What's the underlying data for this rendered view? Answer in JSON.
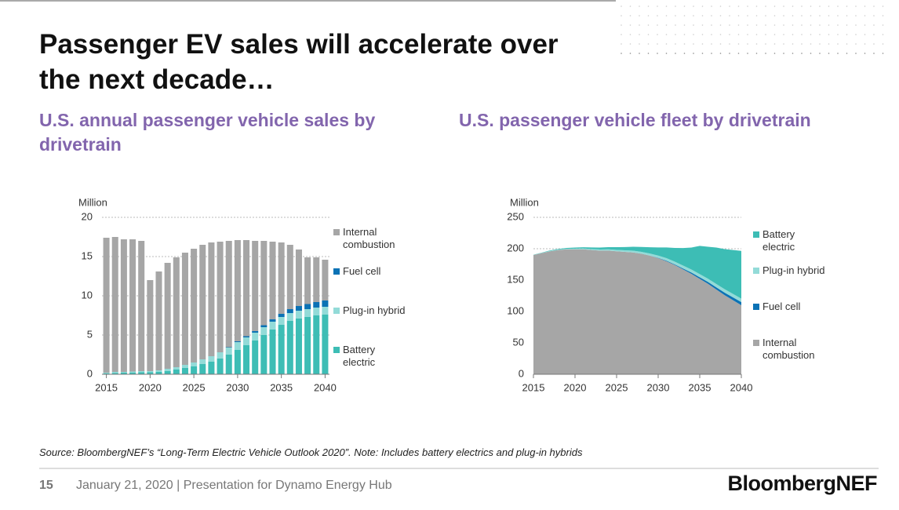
{
  "header": {
    "title": "Passenger EV sales will accelerate over the next decade…"
  },
  "chart_data": [
    {
      "type": "bar",
      "stacked": true,
      "title": "U.S. annual passenger vehicle sales by drivetrain",
      "y_label": "Million",
      "x": [
        2015,
        2016,
        2017,
        2018,
        2019,
        2020,
        2021,
        2022,
        2023,
        2024,
        2025,
        2026,
        2027,
        2028,
        2029,
        2030,
        2031,
        2032,
        2033,
        2034,
        2035,
        2036,
        2037,
        2038,
        2039,
        2040
      ],
      "xlim": [
        2014.5,
        2040.5
      ],
      "xticks": [
        2015,
        2020,
        2025,
        2030,
        2035,
        2040
      ],
      "ylim": [
        0,
        20
      ],
      "yticks": [
        0,
        5,
        10,
        15,
        20
      ],
      "grid": true,
      "series": [
        {
          "name": "Battery electric",
          "color": "#3dbdb5",
          "values": [
            0.1,
            0.15,
            0.2,
            0.2,
            0.25,
            0.25,
            0.3,
            0.4,
            0.6,
            0.8,
            1.0,
            1.3,
            1.6,
            2.0,
            2.5,
            3.1,
            3.7,
            4.3,
            5.0,
            5.7,
            6.3,
            6.8,
            7.1,
            7.3,
            7.5,
            7.6
          ]
        },
        {
          "name": "Plug-in hybrid",
          "color": "#93dbd8",
          "values": [
            0.1,
            0.15,
            0.1,
            0.15,
            0.15,
            0.15,
            0.2,
            0.3,
            0.3,
            0.4,
            0.5,
            0.6,
            0.7,
            0.8,
            0.9,
            1.0,
            1.0,
            1.0,
            1.0,
            1.0,
            1.0,
            1.0,
            1.0,
            1.0,
            1.0,
            1.0
          ]
        },
        {
          "name": "Fuel cell",
          "color": "#0b72b5",
          "values": [
            0,
            0,
            0,
            0,
            0,
            0,
            0,
            0,
            0,
            0,
            0,
            0,
            0,
            0,
            0.05,
            0.1,
            0.15,
            0.2,
            0.25,
            0.3,
            0.4,
            0.5,
            0.6,
            0.65,
            0.7,
            0.8
          ]
        },
        {
          "name": "Internal combustion",
          "color": "#a6a6a6",
          "values": [
            17.2,
            17.2,
            16.9,
            16.85,
            16.6,
            11.6,
            12.6,
            13.5,
            14.0,
            14.3,
            14.5,
            14.6,
            14.5,
            14.1,
            13.55,
            12.9,
            12.25,
            11.5,
            10.75,
            9.9,
            9.1,
            8.2,
            7.2,
            5.95,
            5.7,
            5.2
          ]
        }
      ]
    },
    {
      "type": "area",
      "stacked": true,
      "title": "U.S. passenger vehicle fleet by drivetrain",
      "y_label": "Million",
      "x": [
        2015,
        2016,
        2017,
        2018,
        2019,
        2020,
        2021,
        2022,
        2023,
        2024,
        2025,
        2026,
        2027,
        2028,
        2029,
        2030,
        2031,
        2032,
        2033,
        2034,
        2035,
        2036,
        2037,
        2038,
        2039,
        2040
      ],
      "xlim": [
        2015,
        2040
      ],
      "xticks": [
        2015,
        2020,
        2025,
        2030,
        2035,
        2040
      ],
      "ylim": [
        0,
        250
      ],
      "yticks": [
        0,
        50,
        100,
        150,
        200,
        250
      ],
      "grid": true,
      "series": [
        {
          "name": "Internal combustion",
          "color": "#a6a6a6",
          "values": [
            190,
            193,
            196,
            198,
            199,
            199,
            199,
            198,
            197,
            197,
            196,
            195,
            194,
            192,
            189,
            185,
            180,
            174,
            167,
            160,
            152,
            144,
            135,
            126,
            118,
            110
          ]
        },
        {
          "name": "Fuel cell",
          "color": "#0b72b5",
          "values": [
            0,
            0,
            0,
            0,
            0,
            0,
            0,
            0,
            0,
            0,
            0,
            0,
            0,
            0,
            0,
            0.5,
            1,
            1,
            1.5,
            2,
            2.5,
            3,
            3.5,
            4,
            4.5,
            5
          ]
        },
        {
          "name": "Plug-in hybrid",
          "color": "#93dbd8",
          "values": [
            0.2,
            0.3,
            0.5,
            0.7,
            1,
            1.2,
            1.4,
            1.6,
            1.8,
            2,
            2.2,
            2.5,
            2.8,
            3,
            3.3,
            3.6,
            4,
            4.3,
            4.6,
            4.9,
            5,
            5.2,
            5.3,
            5.4,
            5.5,
            5.5
          ]
        },
        {
          "name": "Battery electric",
          "color": "#3dbdb5",
          "values": [
            0.3,
            0.5,
            0.8,
            1,
            1.3,
            1.6,
            2,
            2.5,
            3,
            3.5,
            4.3,
            5.2,
            6.3,
            7.8,
            10,
            13,
            17,
            22,
            28,
            35,
            45,
            51,
            58,
            64,
            70,
            76
          ]
        }
      ]
    }
  ],
  "source": "Source: BloombergNEF’s “Long-Term Electric Vehicle Outlook 2020”. Note: Includes battery electrics and plug-in hybrids",
  "footer": {
    "page": "15",
    "text": "January 21, 2020 | Presentation for Dynamo Energy Hub",
    "logo": "BloombergNEF"
  }
}
